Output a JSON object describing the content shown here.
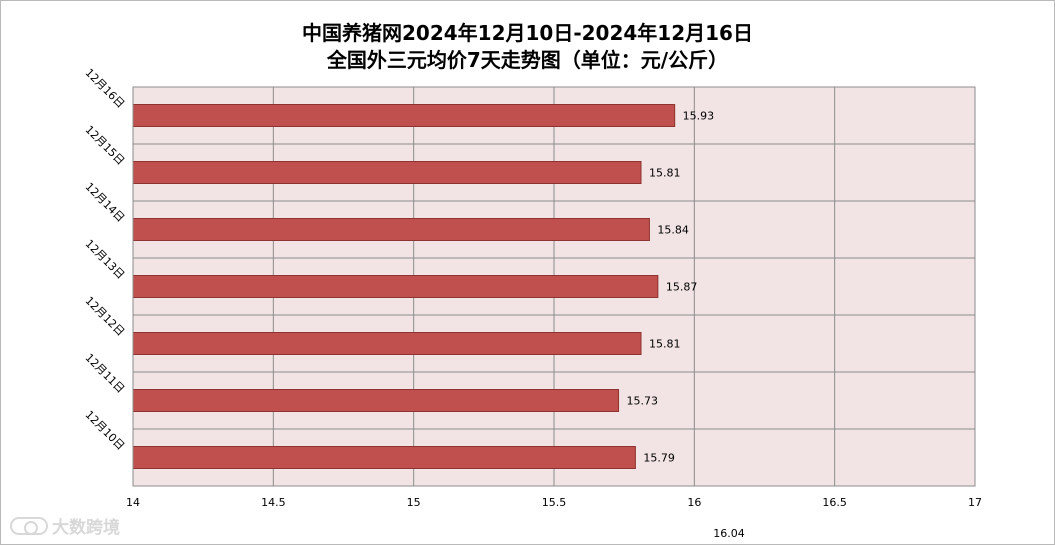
{
  "title_line1": "中国养猪网2024年12月10日-2024年12月16日",
  "title_line2": "全国外三元均价7天走势图（单位：元/公斤）",
  "watermark": "大数跨境",
  "stray_label": "16.04",
  "colors": {
    "bar": "#c0504d",
    "plot_bg": "#f2e4e4",
    "grid": "#8c8c8c"
  },
  "chart_data": {
    "type": "bar",
    "orientation": "horizontal",
    "categories": [
      "12月16日",
      "12月15日",
      "12月14日",
      "12月13日",
      "12月12日",
      "12月11日",
      "12月10日"
    ],
    "values": [
      15.93,
      15.81,
      15.84,
      15.87,
      15.81,
      15.73,
      15.79
    ],
    "data_labels": [
      "15.93",
      "15.81",
      "15.84",
      "15.87",
      "15.81",
      "15.73",
      "15.79"
    ],
    "x_ticks": [
      "14",
      "14.5",
      "15",
      "15.5",
      "16",
      "16.5",
      "17"
    ],
    "xlim": [
      14,
      17
    ],
    "grid": true,
    "legend": "none"
  }
}
